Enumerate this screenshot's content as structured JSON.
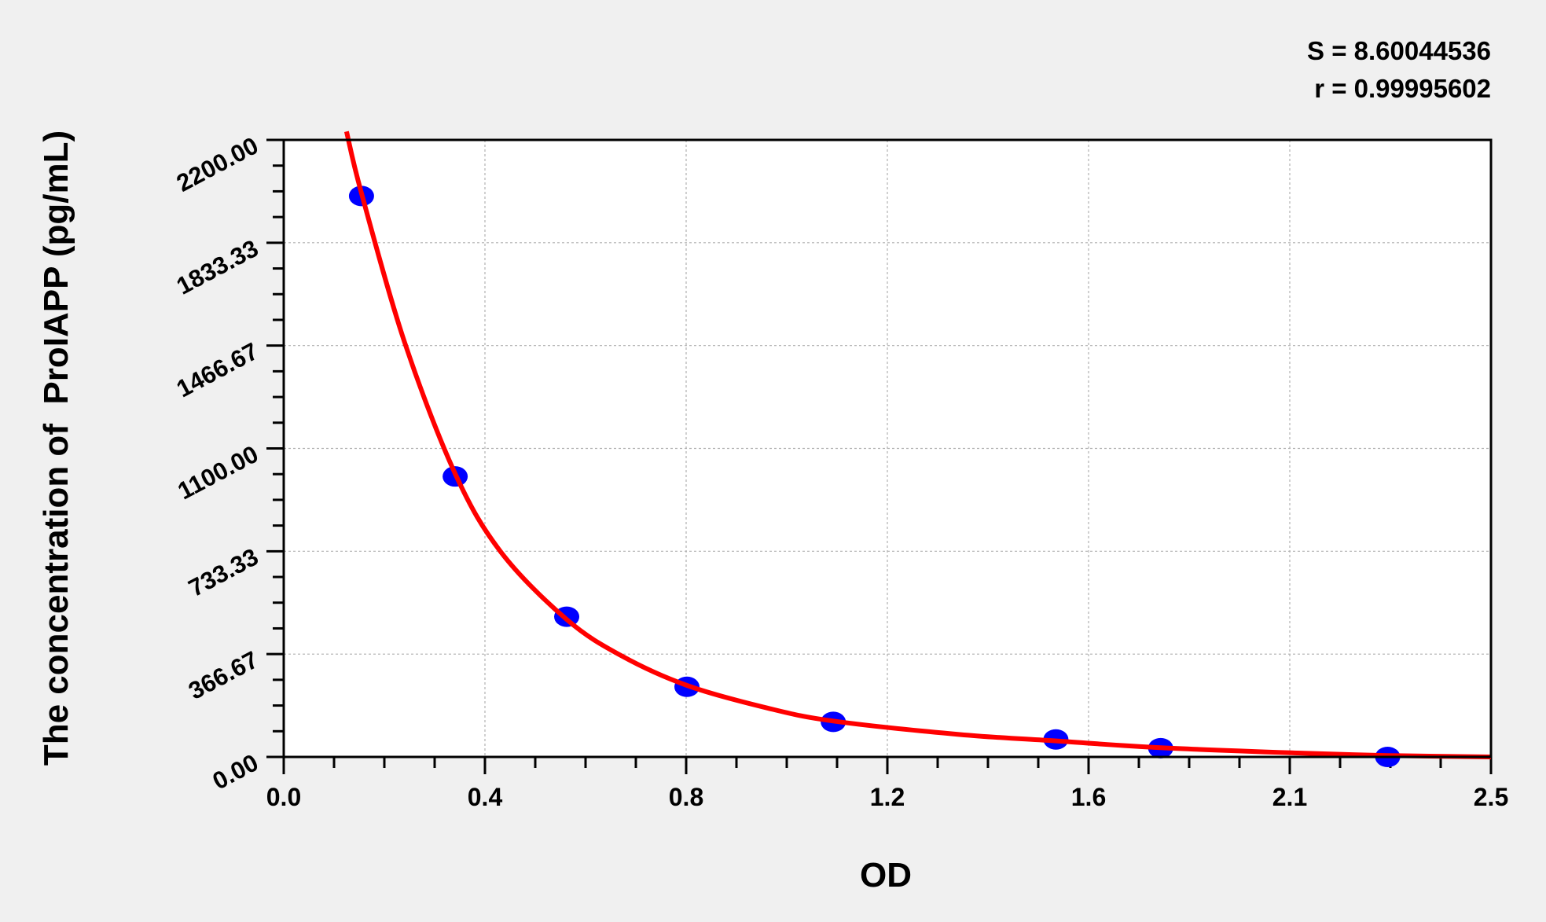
{
  "chart_data": {
    "type": "scatter",
    "title": "",
    "xlabel": "OD",
    "ylabel": "The concentration of  ProIAPP (pg/mL)",
    "xlim": [
      0,
      2.5
    ],
    "ylim": [
      0,
      2200
    ],
    "x_ticks": [
      0,
      0.41667,
      0.83333,
      1.25,
      1.66667,
      2.08333,
      2.5
    ],
    "x_tick_labels": [
      "0.0",
      "0.4",
      "0.8",
      "1.2",
      "1.6",
      "2.1",
      "2.5"
    ],
    "y_ticks": [
      0,
      366.67,
      733.33,
      1100,
      1466.67,
      1833.33,
      2200
    ],
    "y_tick_labels": [
      "0.00",
      "366.67",
      "733.33",
      "1100.00",
      "1466.67",
      "1833.33",
      "2200.00"
    ],
    "minor_divisions": 4,
    "grid": true,
    "stats": [
      "S = 8.60044536",
      "r = 0.99995602"
    ],
    "series": [
      {
        "type": "scatter",
        "color": "#0000ff",
        "x": [
          0.161,
          0.355,
          0.586,
          0.835,
          1.138,
          1.599,
          1.816,
          2.286
        ],
        "y": [
          2000,
          1000,
          500,
          250,
          125,
          62.5,
          31.25,
          0
        ]
      },
      {
        "type": "line",
        "color": "#ff0000",
        "x": [
          0.13,
          0.161,
          0.25,
          0.355,
          0.45,
          0.586,
          0.7,
          0.835,
          1.0,
          1.138,
          1.4,
          1.6,
          1.816,
          2.1,
          2.286,
          2.5
        ],
        "y": [
          2230,
          2010,
          1480,
          1010,
          730,
          490,
          360,
          255,
          175,
          128,
          80,
          57,
          33,
          14,
          5,
          0
        ]
      }
    ]
  }
}
